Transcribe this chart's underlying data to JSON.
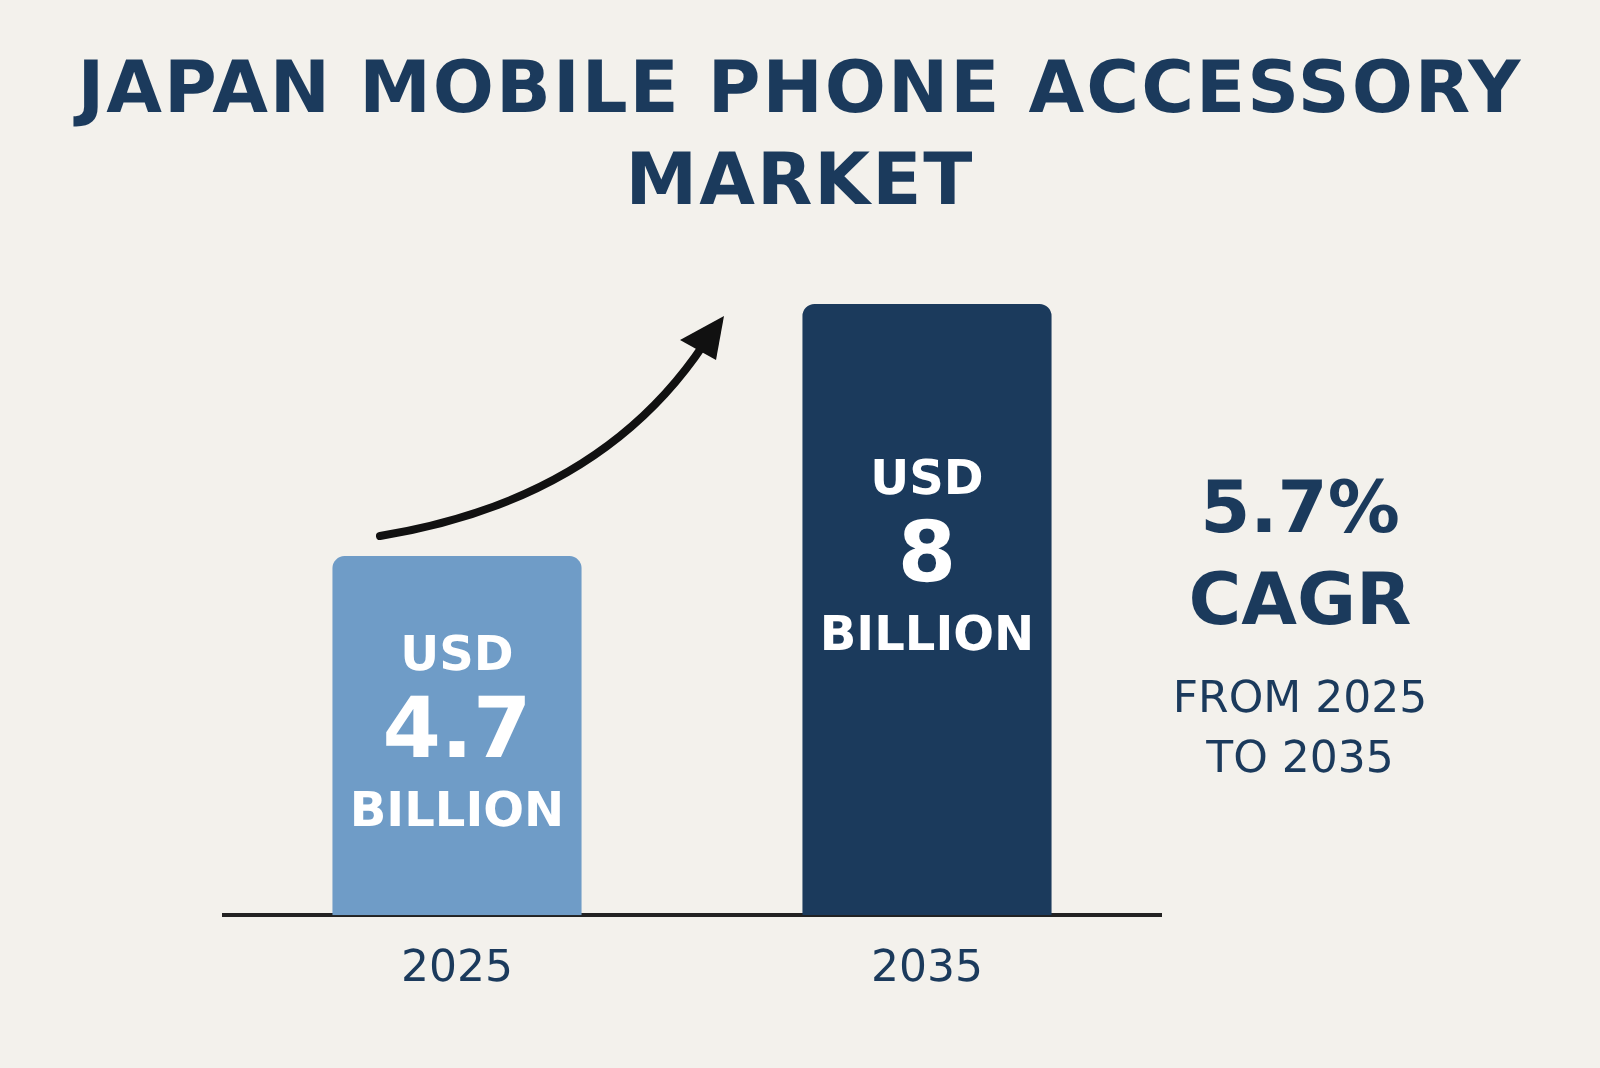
{
  "chart_data": {
    "type": "bar",
    "title": "JAPAN MOBILE PHONE ACCESSORY MARKET",
    "categories": [
      "2025",
      "2035"
    ],
    "values": [
      4.7,
      8
    ],
    "colors": [
      "#6f9cc7",
      "#1b3a5c"
    ],
    "value_labels": [
      "USD 4.7 BILLION",
      "USD 8 BILLION"
    ],
    "annotations": [
      "5.7% CAGR",
      "FROM 2025 TO 2035"
    ],
    "legend": false,
    "grid": false
  }
}
